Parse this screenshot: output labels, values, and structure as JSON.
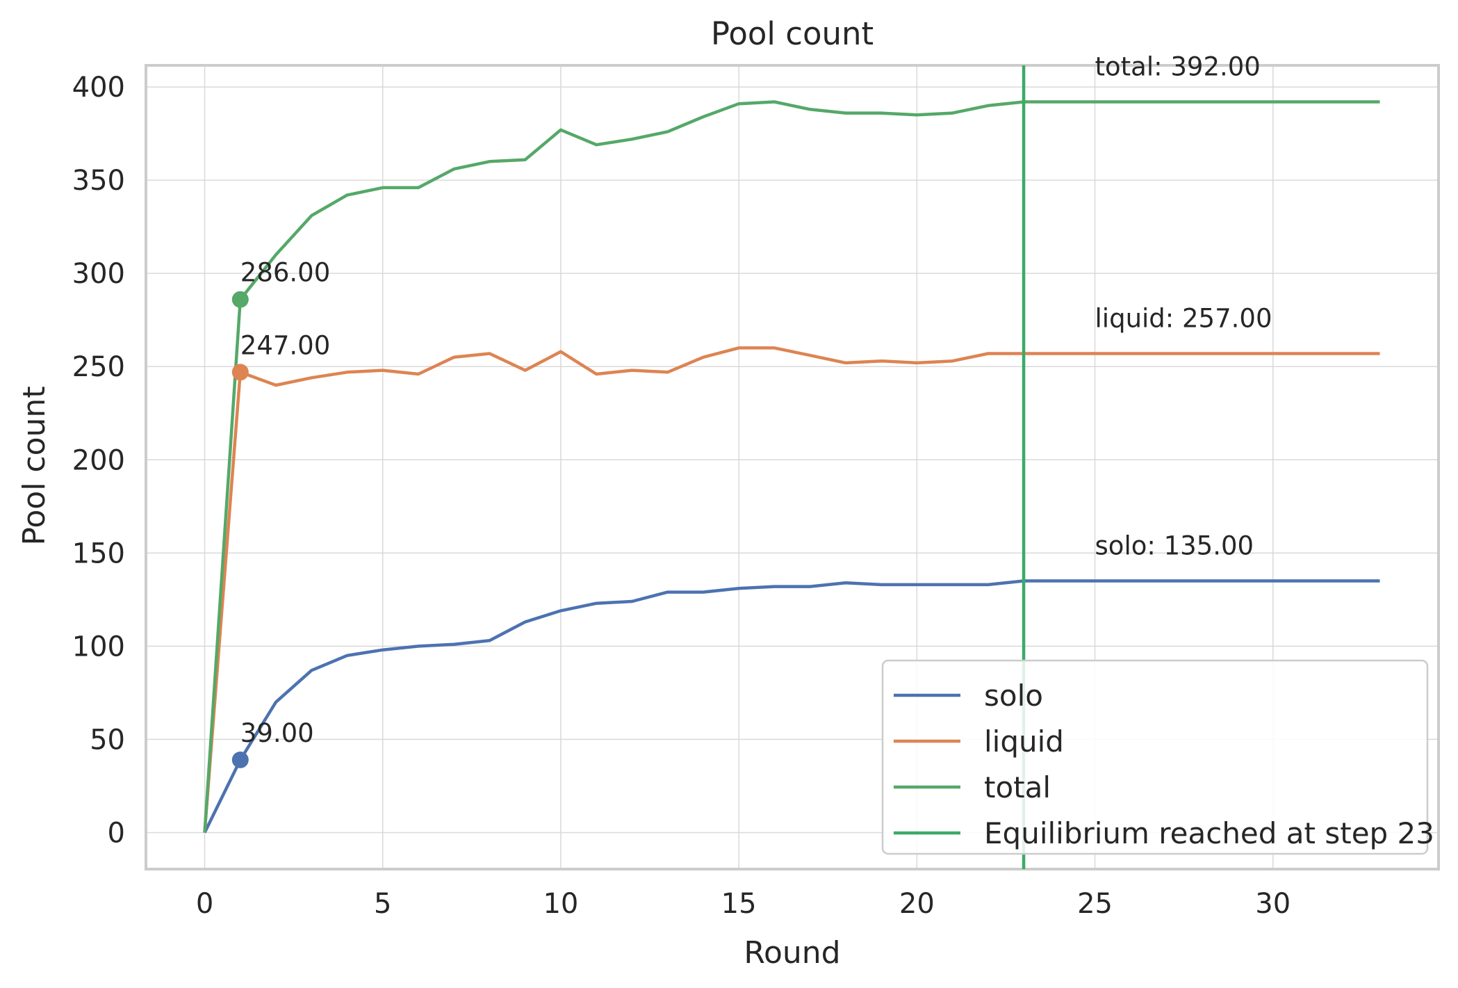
{
  "chart_data": {
    "type": "line",
    "title": "Pool count",
    "xlabel": "Round",
    "ylabel": "Pool count",
    "xlim": [
      -1.65,
      34.65
    ],
    "ylim": [
      -19.6,
      411.6
    ],
    "xticks": [
      0,
      5,
      10,
      15,
      20,
      25,
      30
    ],
    "yticks": [
      0,
      50,
      100,
      150,
      200,
      250,
      300,
      350,
      400
    ],
    "grid": true,
    "legend_position": "lower-right",
    "x": [
      0,
      1,
      2,
      3,
      4,
      5,
      6,
      7,
      8,
      9,
      10,
      11,
      12,
      13,
      14,
      15,
      16,
      17,
      18,
      19,
      20,
      21,
      22,
      23,
      24,
      25,
      26,
      27,
      28,
      29,
      30,
      31,
      32,
      33
    ],
    "series": [
      {
        "name": "solo",
        "color": "#4c72b0",
        "values": [
          0,
          39,
          70,
          87,
          95,
          98,
          100,
          101,
          103,
          113,
          119,
          123,
          124,
          129,
          129,
          131,
          132,
          132,
          134,
          133,
          133,
          133,
          133,
          135,
          135,
          135,
          135,
          135,
          135,
          135,
          135,
          135,
          135,
          135
        ]
      },
      {
        "name": "liquid",
        "color": "#dd8452",
        "values": [
          0,
          247,
          240,
          244,
          247,
          248,
          246,
          255,
          257,
          248,
          258,
          246,
          248,
          247,
          255,
          260,
          260,
          256,
          252,
          253,
          252,
          253,
          257,
          257,
          257,
          257,
          257,
          257,
          257,
          257,
          257,
          257,
          257,
          257
        ]
      },
      {
        "name": "total",
        "color": "#55a868",
        "values": [
          0,
          286,
          310,
          331,
          342,
          346,
          346,
          356,
          360,
          361,
          377,
          369,
          372,
          376,
          384,
          391,
          392,
          388,
          386,
          386,
          385,
          386,
          390,
          392,
          392,
          392,
          392,
          392,
          392,
          392,
          392,
          392,
          392,
          392
        ]
      }
    ],
    "vline": {
      "x": 23,
      "label": "Equilibrium reached at step 23",
      "color": "#3aaa66"
    },
    "markers": [
      {
        "series": "solo",
        "x": 1,
        "y": 39,
        "label": "39.00"
      },
      {
        "series": "liquid",
        "x": 1,
        "y": 247,
        "label": "247.00"
      },
      {
        "series": "total",
        "x": 1,
        "y": 286,
        "label": "286.00"
      }
    ],
    "end_labels": [
      {
        "series": "total",
        "x": 25,
        "y": 392,
        "label": "total: 392.00"
      },
      {
        "series": "liquid",
        "x": 25,
        "y": 257,
        "label": "liquid: 257.00"
      },
      {
        "series": "solo",
        "x": 25,
        "y": 135,
        "label": "solo: 135.00"
      }
    ]
  }
}
